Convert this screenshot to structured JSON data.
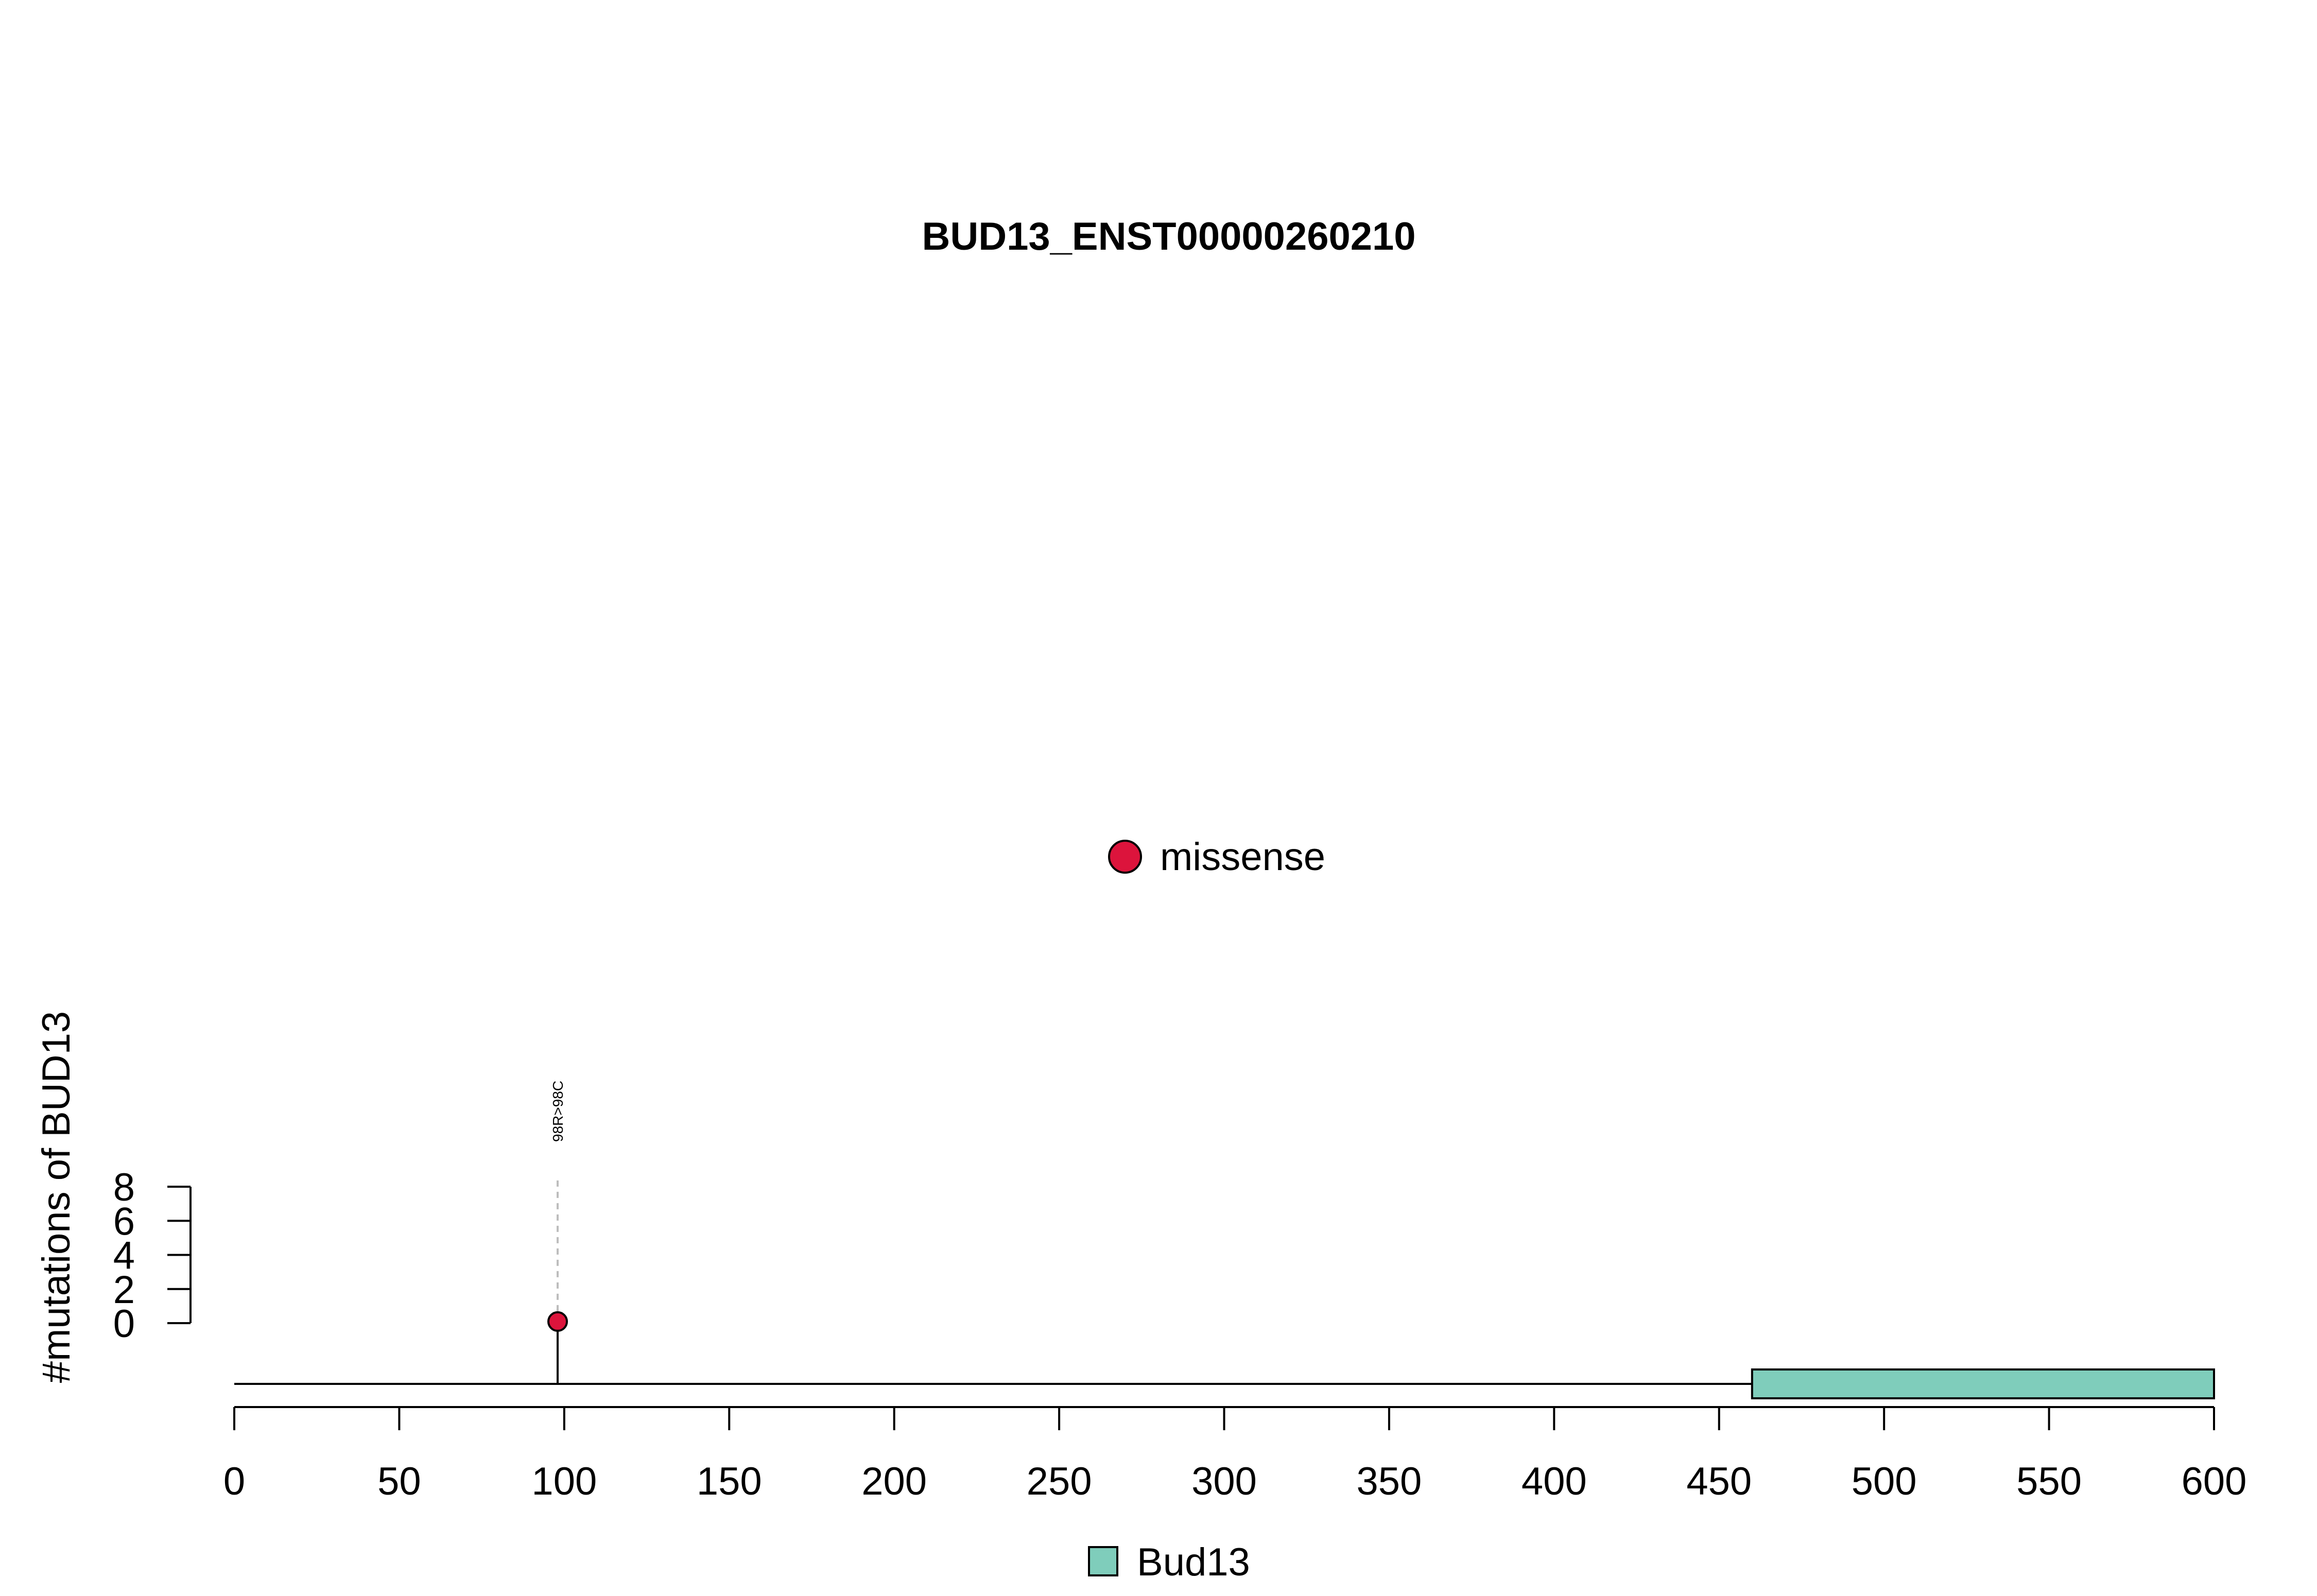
{
  "chart_data": {
    "type": "lollipop",
    "title": "BUD13_ENST00000260210",
    "ylabel": "#mutations of BUD13",
    "xlim": [
      0,
      600
    ],
    "x_ticks": [
      0,
      50,
      100,
      150,
      200,
      250,
      300,
      350,
      400,
      450,
      500,
      550,
      600
    ],
    "ylim": [
      0,
      8
    ],
    "y_ticks": [
      0,
      2,
      4,
      6,
      8
    ],
    "protein_length": 600,
    "mutations": [
      {
        "position": 98,
        "count": 1,
        "label": "98R>98C",
        "type": "missense"
      }
    ],
    "domains": [
      {
        "name": "Bud13",
        "start": 460,
        "end": 600,
        "color": "#7fcdbb"
      }
    ],
    "mutation_legend": [
      {
        "label": "missense",
        "color": "#dc143c"
      }
    ],
    "domain_legend": [
      {
        "label": "Bud13",
        "color": "#7fcdbb"
      }
    ]
  }
}
